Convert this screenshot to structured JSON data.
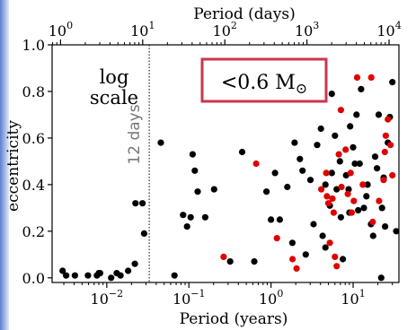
{
  "chart_data": {
    "type": "scatter",
    "x_top": {
      "label": "Period (days)",
      "scale": "log",
      "ticks": [
        {
          "value": 1,
          "base": "10",
          "exp": "0"
        },
        {
          "value": 10,
          "base": "10",
          "exp": "1"
        },
        {
          "value": 100,
          "base": "10",
          "exp": "2"
        },
        {
          "value": 1000,
          "base": "10",
          "exp": "3"
        },
        {
          "value": 10000,
          "base": "10",
          "exp": "4"
        }
      ]
    },
    "x_bottom": {
      "label": "Period (years)",
      "scale": "log",
      "ticks": [
        {
          "value": 0.01,
          "base": "10",
          "exp": "−2"
        },
        {
          "value": 0.1,
          "base": "10",
          "exp": "−1"
        },
        {
          "value": 1,
          "base": "10",
          "exp": "0"
        },
        {
          "value": 10,
          "base": "10",
          "exp": "1"
        }
      ]
    },
    "xlim_years": [
      0.00216,
      36.1
    ],
    "y": {
      "label": "eccentricity",
      "ylim": [
        -0.02,
        1.0
      ],
      "ticks": [
        "0.0",
        "0.2",
        "0.4",
        "0.6",
        "0.8",
        "1.0"
      ]
    },
    "annotations": {
      "log_scale_line1": "log",
      "log_scale_line2": "scale",
      "period_line_label": "12 days",
      "period_line_years": 0.0329,
      "mass_box_prefix": "<0.6 M",
      "mass_box_symbol": "⊙"
    },
    "colors": {
      "black_series": "#000000",
      "red_series": "#e00000",
      "box_border": "#c8374b"
    },
    "series": [
      {
        "color": "black",
        "points": [
          [
            0.0029,
            0.03
          ],
          [
            0.0032,
            0.01
          ],
          [
            0.0041,
            0.01
          ],
          [
            0.0059,
            0.01
          ],
          [
            0.0076,
            0.01
          ],
          [
            0.008,
            0.02
          ],
          [
            0.0083,
            0.02
          ],
          [
            0.0113,
            0.0
          ],
          [
            0.0132,
            0.02
          ],
          [
            0.0147,
            0.01
          ],
          [
            0.0182,
            0.03
          ],
          [
            0.022,
            0.06
          ],
          [
            0.0224,
            0.32
          ],
          [
            0.0272,
            0.32
          ],
          [
            0.0285,
            0.19
          ],
          [
            0.0455,
            0.58
          ],
          [
            0.0667,
            0.01
          ],
          [
            0.085,
            0.27
          ],
          [
            0.095,
            0.22
          ],
          [
            0.105,
            0.26
          ],
          [
            0.111,
            0.53
          ],
          [
            0.118,
            0.46
          ],
          [
            0.128,
            0.37
          ],
          [
            0.158,
            0.26
          ],
          [
            0.203,
            0.38
          ],
          [
            0.318,
            0.07
          ],
          [
            0.445,
            0.54
          ],
          [
            0.625,
            0.07
          ],
          [
            0.88,
            0.37
          ],
          [
            1.0,
            0.25
          ],
          [
            1.12,
            0.45
          ],
          [
            1.28,
            0.25
          ],
          [
            1.41,
            0.84
          ],
          [
            1.58,
            0.39
          ],
          [
            1.82,
            0.15
          ],
          [
            1.94,
            0.58
          ],
          [
            2.25,
            0.51
          ],
          [
            2.42,
            0.46
          ],
          [
            2.65,
            0.1
          ],
          [
            3.02,
            0.42
          ],
          [
            3.3,
            0.23
          ],
          [
            3.65,
            0.57
          ],
          [
            4.05,
            0.64
          ],
          [
            4.25,
            0.18
          ],
          [
            4.6,
            0.4
          ],
          [
            4.6,
            0.13
          ],
          [
            5.2,
            0.31
          ],
          [
            5.5,
            0.45
          ],
          [
            5.5,
            0.79
          ],
          [
            6.0,
            0.61
          ],
          [
            6.3,
            0.38
          ],
          [
            6.9,
            0.5
          ],
          [
            7.1,
            0.26
          ],
          [
            7.5,
            0.08
          ],
          [
            8.2,
            0.44
          ],
          [
            8.8,
            0.38
          ],
          [
            9.0,
            0.28
          ],
          [
            9.2,
            0.65
          ],
          [
            10.0,
            0.56
          ],
          [
            10.5,
            0.49
          ],
          [
            11.0,
            0.7
          ],
          [
            11.5,
            0.29
          ],
          [
            12.0,
            0.49
          ],
          [
            12.5,
            0.81
          ],
          [
            13.5,
            0.3
          ],
          [
            14.5,
            0.35
          ],
          [
            15.0,
            0.4
          ],
          [
            16.5,
            0.23
          ],
          [
            17.5,
            0.18
          ],
          [
            18.5,
            0.52
          ],
          [
            19.5,
            0.47
          ],
          [
            20.5,
            0.7
          ],
          [
            22.5,
            0.3
          ],
          [
            23.5,
            0.43
          ],
          [
            24.5,
            0.22
          ],
          [
            26.5,
            0.58
          ],
          [
            28.0,
            0.69
          ],
          [
            30.0,
            0.84
          ],
          [
            33.5,
            0.2
          ],
          [
            22.0,
            0.0
          ]
        ]
      },
      {
        "color": "red",
        "points": [
          [
            0.265,
            0.09
          ],
          [
            0.66,
            0.49
          ],
          [
            1.18,
            0.17
          ],
          [
            1.83,
            0.08
          ],
          [
            2.05,
            0.04
          ],
          [
            4.1,
            0.38
          ],
          [
            4.3,
            0.91
          ],
          [
            4.7,
            0.45
          ],
          [
            4.8,
            0.35
          ],
          [
            5.0,
            0.32
          ],
          [
            5.2,
            0.15
          ],
          [
            5.6,
            0.34
          ],
          [
            5.8,
            0.28
          ],
          [
            6.0,
            0.09
          ],
          [
            6.3,
            0.05
          ],
          [
            6.7,
            0.53
          ],
          [
            7.1,
            0.72
          ],
          [
            7.2,
            0.39
          ],
          [
            8.1,
            0.55
          ],
          [
            8.6,
            0.36
          ],
          [
            9.3,
            0.45
          ],
          [
            9.6,
            0.28
          ],
          [
            10.2,
            0.33
          ],
          [
            11.2,
            0.86
          ],
          [
            13.1,
            0.4
          ],
          [
            16.6,
            0.86
          ],
          [
            17.3,
            0.24
          ],
          [
            20.7,
            0.33
          ],
          [
            23.5,
            0.42
          ],
          [
            24.3,
            0.54
          ],
          [
            25.0,
            0.61
          ],
          [
            26.5,
            0.68
          ],
          [
            28.5,
            0.57
          ],
          [
            30.0,
            0.44
          ]
        ]
      }
    ]
  }
}
